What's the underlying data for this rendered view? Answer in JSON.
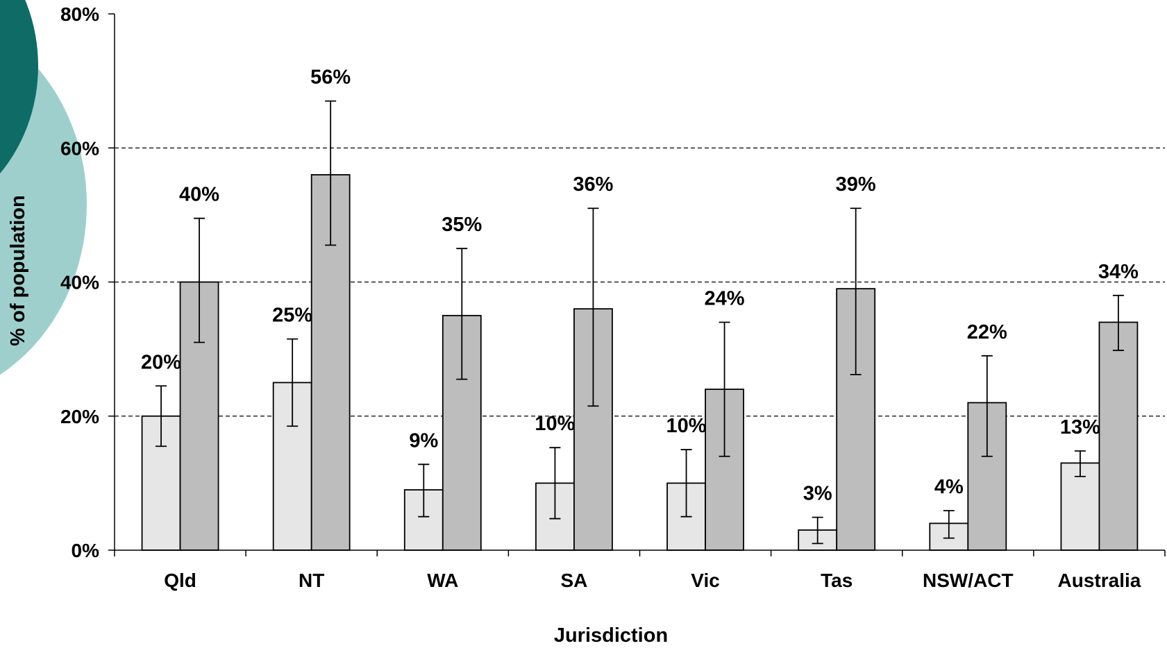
{
  "colors": {
    "background": "#ffffff",
    "series_light": "#e6e6e6",
    "series_dark": "#bdbdbd",
    "bar_outline": "#000000",
    "gridline": "#000000",
    "decor_dark_teal": "#0f6b66",
    "decor_light_teal": "#9fcfcd"
  },
  "chart_data": {
    "type": "bar",
    "title": "",
    "xlabel": "Jurisdiction",
    "ylabel": "% of population",
    "ylim": [
      0,
      80
    ],
    "yticks": [
      "0%",
      "20%",
      "40%",
      "60%",
      "80%"
    ],
    "ytick_values": [
      0,
      20,
      40,
      60,
      80
    ],
    "grid": "horizontal dashed",
    "legend": "none",
    "error_bars": true,
    "categories": [
      "Qld",
      "NT",
      "WA",
      "SA",
      "Vic",
      "Tas",
      "NSW/ACT",
      "Australia"
    ],
    "series": [
      {
        "color": "#e6e6e6",
        "values": [
          20,
          25,
          9,
          10,
          10,
          3,
          4,
          13
        ],
        "labels": [
          "20%",
          "25%",
          "9%",
          "10%",
          "10%",
          "3%",
          "4%",
          "13%"
        ],
        "err_low": [
          15.5,
          18.5,
          5,
          4.7,
          5,
          1,
          1.8,
          11
        ],
        "err_high": [
          24.5,
          31.5,
          12.8,
          15.3,
          15,
          4.9,
          5.9,
          14.8
        ]
      },
      {
        "color": "#bdbdbd",
        "values": [
          40,
          56,
          35,
          36,
          24,
          39,
          22,
          34
        ],
        "labels": [
          "40%",
          "56%",
          "35%",
          "36%",
          "24%",
          "39%",
          "22%",
          "34%"
        ],
        "err_low": [
          31,
          45.5,
          25.5,
          21.5,
          14,
          26.2,
          14,
          29.8
        ],
        "err_high": [
          49.5,
          67,
          45,
          51,
          34,
          51,
          29,
          38
        ]
      }
    ]
  }
}
